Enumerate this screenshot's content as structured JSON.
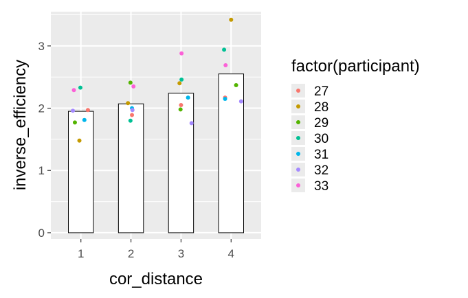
{
  "chart_data": {
    "type": "bar",
    "xlabel": "cor_distance",
    "ylabel": "inverse_efficiency",
    "categories": [
      "1",
      "2",
      "3",
      "4"
    ],
    "bar_values": [
      1.95,
      2.07,
      2.24,
      2.55
    ],
    "ylim": [
      -0.1,
      3.55
    ],
    "xlim": [
      0.4,
      4.6
    ],
    "y_ticks": [
      0,
      1,
      2,
      3
    ],
    "grid": true,
    "legend": {
      "title": "factor(participant)",
      "placement": "right",
      "entries": [
        {
          "label": "27",
          "color": "#F8766D"
        },
        {
          "label": "28",
          "color": "#C49A00"
        },
        {
          "label": "29",
          "color": "#53B400"
        },
        {
          "label": "30",
          "color": "#00C094"
        },
        {
          "label": "31",
          "color": "#00B6EB"
        },
        {
          "label": "32",
          "color": "#A58AFF"
        },
        {
          "label": "33",
          "color": "#FB61D7"
        }
      ]
    },
    "points": [
      {
        "participant": "27",
        "x": 1.14,
        "y": 1.97
      },
      {
        "participant": "28",
        "x": 0.97,
        "y": 1.48
      },
      {
        "participant": "29",
        "x": 0.88,
        "y": 1.77
      },
      {
        "participant": "30",
        "x": 0.99,
        "y": 2.33
      },
      {
        "participant": "31",
        "x": 1.07,
        "y": 1.81
      },
      {
        "participant": "32",
        "x": 0.84,
        "y": 1.96
      },
      {
        "participant": "33",
        "x": 0.86,
        "y": 2.29
      },
      {
        "participant": "27",
        "x": 2.02,
        "y": 1.89
      },
      {
        "participant": "28",
        "x": 1.94,
        "y": 2.08
      },
      {
        "participant": "29",
        "x": 1.99,
        "y": 2.41
      },
      {
        "participant": "30",
        "x": 1.99,
        "y": 1.8
      },
      {
        "participant": "31",
        "x": 2.02,
        "y": 2.0
      },
      {
        "participant": "32",
        "x": 2.03,
        "y": 1.97
      },
      {
        "participant": "33",
        "x": 2.05,
        "y": 2.35
      },
      {
        "participant": "27",
        "x": 3.0,
        "y": 2.05
      },
      {
        "participant": "28",
        "x": 2.97,
        "y": 2.4
      },
      {
        "participant": "29",
        "x": 2.99,
        "y": 1.98
      },
      {
        "participant": "30",
        "x": 3.01,
        "y": 2.46
      },
      {
        "participant": "31",
        "x": 3.14,
        "y": 2.17
      },
      {
        "participant": "32",
        "x": 3.21,
        "y": 1.76
      },
      {
        "participant": "33",
        "x": 3.01,
        "y": 2.88
      },
      {
        "participant": "27",
        "x": 3.88,
        "y": 2.17
      },
      {
        "participant": "28",
        "x": 4.0,
        "y": 3.42
      },
      {
        "participant": "29",
        "x": 4.1,
        "y": 2.37
      },
      {
        "participant": "30",
        "x": 3.86,
        "y": 2.94
      },
      {
        "participant": "31",
        "x": 3.88,
        "y": 2.15
      },
      {
        "participant": "32",
        "x": 4.2,
        "y": 2.11
      },
      {
        "participant": "33",
        "x": 3.89,
        "y": 2.69
      }
    ]
  }
}
